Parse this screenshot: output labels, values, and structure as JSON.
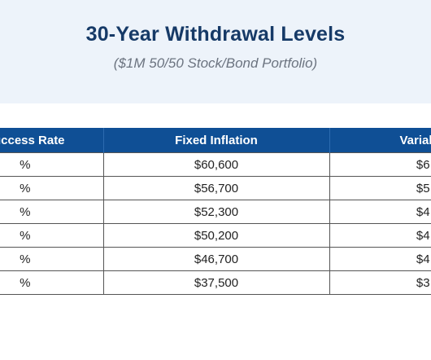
{
  "header": {
    "title": "30-Year Withdrawal Levels",
    "subtitle": "($1M 50/50 Stock/Bond Portfolio)"
  },
  "table": {
    "columns": [
      "Success Rate",
      "Fixed Inflation",
      "Variable"
    ],
    "rows": [
      [
        "%",
        "$60,600",
        "$6"
      ],
      [
        "%",
        "$56,700",
        "$5"
      ],
      [
        "%",
        "$52,300",
        "$4"
      ],
      [
        "%",
        "$50,200",
        "$4"
      ],
      [
        "%",
        "$46,700",
        "$4"
      ],
      [
        "%",
        "$37,500",
        "$3"
      ]
    ]
  },
  "colors": {
    "header_band": "#edf3fa",
    "title": "#163a67",
    "table_header": "#0f4f95"
  }
}
